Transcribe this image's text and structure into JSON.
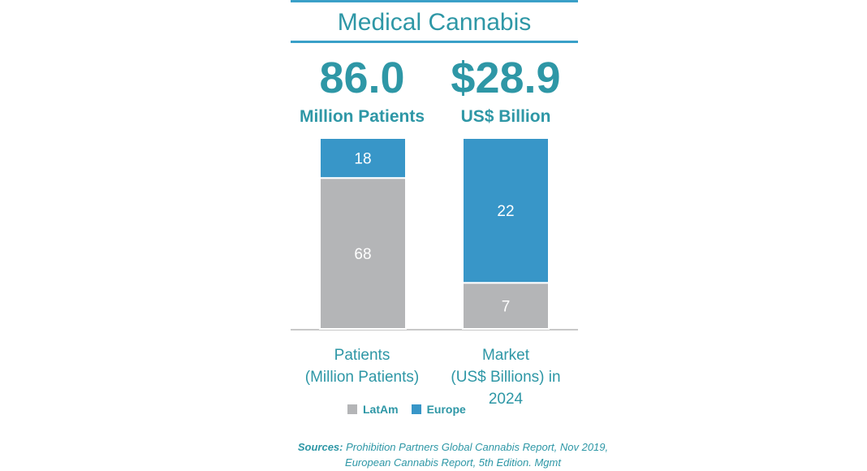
{
  "header": {
    "title": "Medical Cannabis",
    "patients_total": "86.0",
    "patients_unit": "Million Patients",
    "market_total": "$28.9",
    "market_unit": "US$ Billion"
  },
  "colors": {
    "latam": "#b4b5b7",
    "europe": "#3896c8",
    "accent": "#2e97a6",
    "rule": "#3aa0c8"
  },
  "chart_data": {
    "type": "bar",
    "stacked": true,
    "categories": [
      "Patients (Million Patients)",
      "Market (US$ Billions) in 2024"
    ],
    "series": [
      {
        "name": "LatAm",
        "values": [
          68,
          7
        ]
      },
      {
        "name": "Europe",
        "values": [
          18,
          22
        ]
      }
    ],
    "title": "Medical Cannabis",
    "legend": "bottom"
  },
  "categories_display": {
    "patients_line1": "Patients",
    "patients_line2": "(Million Patients)",
    "market_line1": "Market",
    "market_line2": "(US$ Billions) in",
    "market_line3": "2024"
  },
  "legend": {
    "latam": "LatAm",
    "europe": "Europe"
  },
  "source": {
    "label": "Sources:",
    "text": " Prohibition Partners Global Cannabis Report, Nov 2019, European Cannabis Report, 5th Edition. Mgmt"
  }
}
